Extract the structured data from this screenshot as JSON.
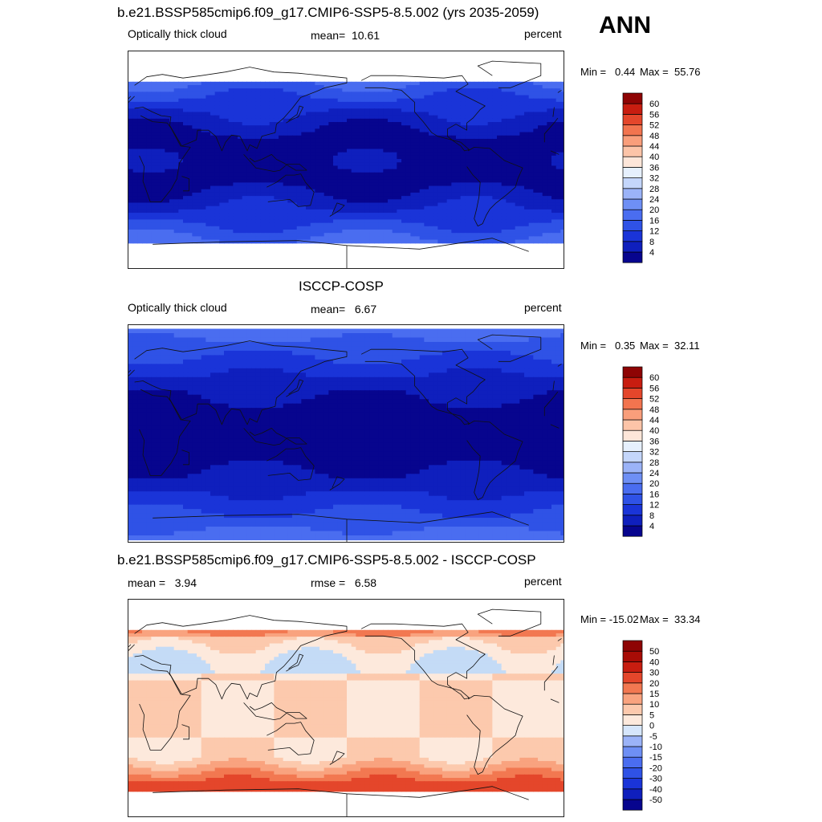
{
  "season": "ANN",
  "panels": [
    {
      "title": "b.e21.BSSP585cmip6.f09_g17.CMIP6-SSP5-8.5.002 (yrs 2035-2059)",
      "left": "Optically thick cloud",
      "center": "mean=  10.61",
      "right": "percent",
      "min_label": "Min =   0.44",
      "max_label": "Max =  55.76",
      "colorbar": {
        "levels": [
          "4",
          "8",
          "12",
          "16",
          "20",
          "24",
          "28",
          "32",
          "36",
          "40",
          "44",
          "48",
          "52",
          "56",
          "60"
        ],
        "colors": [
          "#07058e",
          "#0f1fbd",
          "#1a34d8",
          "#2f52e6",
          "#4a6df0",
          "#6e8ff5",
          "#9bb3f8",
          "#c4d6fb",
          "#e6f0fd",
          "#fde6d9",
          "#fcc4a8",
          "#f99e7b",
          "#f2744f",
          "#e4462b",
          "#c81d10",
          "#8e0404"
        ]
      },
      "palette": [
        "#07058e",
        "#0f1fbd",
        "#1a34d8",
        "#2f52e6",
        "#4a6df0",
        "#6e8ff5",
        "#9bb3f8",
        "#c4d6fb"
      ]
    },
    {
      "title": "ISCCP-COSP",
      "left": "Optically thick cloud",
      "center": "mean=   6.67",
      "right": "percent",
      "min_label": "Min =   0.35",
      "max_label": "Max =  32.11",
      "colorbar": {
        "levels": [
          "4",
          "8",
          "12",
          "16",
          "20",
          "24",
          "28",
          "32",
          "36",
          "40",
          "44",
          "48",
          "52",
          "56",
          "60"
        ],
        "colors": [
          "#07058e",
          "#0f1fbd",
          "#1a34d8",
          "#2f52e6",
          "#4a6df0",
          "#6e8ff5",
          "#9bb3f8",
          "#c4d6fb",
          "#e6f0fd",
          "#fde6d9",
          "#fcc4a8",
          "#f99e7b",
          "#f2744f",
          "#e4462b",
          "#c81d10",
          "#8e0404"
        ]
      },
      "palette": [
        "#07058e",
        "#0f1fbd",
        "#1a34d8",
        "#2f52e6",
        "#4a6df0",
        "#6e8ff5",
        "#9bb3f8"
      ]
    },
    {
      "title": "b.e21.BSSP585cmip6.f09_g17.CMIP6-SSP5-8.5.002 - ISCCP-COSP",
      "left": "mean =   3.94",
      "center": "rmse =   6.58",
      "right": "percent",
      "min_label": "Min = -15.02",
      "max_label": "Max =  33.34",
      "colorbar": {
        "levels": [
          "-50",
          "-40",
          "-30",
          "-20",
          "-15",
          "-10",
          "-5",
          "0",
          "5",
          "10",
          "15",
          "20",
          "30",
          "40",
          "50"
        ],
        "colors": [
          "#07058e",
          "#0f1fbd",
          "#1a34d8",
          "#2f52e6",
          "#4a6df0",
          "#6e8ff5",
          "#9bb3f8",
          "#d6e6fb",
          "#fde9dc",
          "#fcc9ad",
          "#f9a37f",
          "#f27851",
          "#e4462b",
          "#c81d10",
          "#a80c06",
          "#8e0404"
        ]
      },
      "palette": [
        "#c4dbf6",
        "#fde9dc",
        "#fcc9ad",
        "#f9a37f",
        "#f27851",
        "#e4462b"
      ]
    }
  ]
}
